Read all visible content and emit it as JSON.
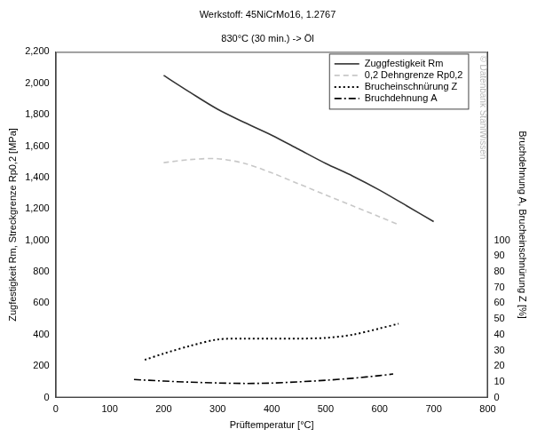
{
  "chart_data": {
    "type": "line",
    "title": "Werkstoff: 45NiCrMo16, 1.2767",
    "subtitle": "830°C (30 min.) -> Öl",
    "x_label": "Prüftemperatur [°C]",
    "y_label": "Zugfestigkeit Rm, Streckgrenze Rp0,2 [MPa]",
    "y2_label": "Bruchdehnung A, Brucheinschnürung Z [%]",
    "annotations": [
      "© Datenbank StahlWissen"
    ],
    "xlim": [
      0,
      800
    ],
    "xticks": [
      0,
      100,
      200,
      300,
      400,
      500,
      600,
      700,
      800
    ],
    "ylim": [
      0,
      2200
    ],
    "yticks": [
      0,
      200,
      400,
      600,
      800,
      1000,
      1200,
      1400,
      1600,
      1800,
      2000,
      2200
    ],
    "y2lim": [
      0,
      220
    ],
    "y2ticks": [
      0,
      10,
      20,
      30,
      40,
      50,
      60,
      70,
      80,
      90,
      100
    ],
    "grid": false,
    "legend": "upper right",
    "series": [
      {
        "name": "Zuggfestigkeit Rm",
        "color": "#333333",
        "line_style": "solid",
        "x": [
          200,
          250,
          300,
          350,
          400,
          450,
          500,
          550,
          600,
          650,
          700
        ],
        "values": [
          2050,
          1940,
          1835,
          1750,
          1670,
          1580,
          1490,
          1410,
          1320,
          1220,
          1120
        ]
      },
      {
        "name": "0,2 Dehngrenze Rp0,2",
        "color": "#c8c8c8",
        "line_style": "dashed",
        "x": [
          200,
          250,
          300,
          350,
          400,
          450,
          500,
          550,
          600,
          635
        ],
        "values": [
          1495,
          1515,
          1520,
          1490,
          1430,
          1360,
          1290,
          1220,
          1150,
          1100
        ]
      },
      {
        "name": "Brucheinschnürung Z",
        "color": "#000000",
        "line_style": "dotted",
        "axis": "y2",
        "x": [
          165,
          200,
          250,
          300,
          350,
          400,
          450,
          500,
          550,
          600,
          635
        ],
        "values": [
          24,
          28,
          33,
          37,
          37.5,
          37.5,
          37.5,
          38,
          40,
          44,
          47
        ]
      },
      {
        "name": "Bruchdehnung A",
        "color": "#000000",
        "line_style": "dashdot",
        "axis": "y2",
        "x": [
          145,
          200,
          250,
          300,
          350,
          400,
          450,
          500,
          550,
          600,
          625
        ],
        "values": [
          11.5,
          10.5,
          9.8,
          9.3,
          9,
          9.2,
          10,
          11,
          12.3,
          14,
          15
        ]
      }
    ]
  }
}
